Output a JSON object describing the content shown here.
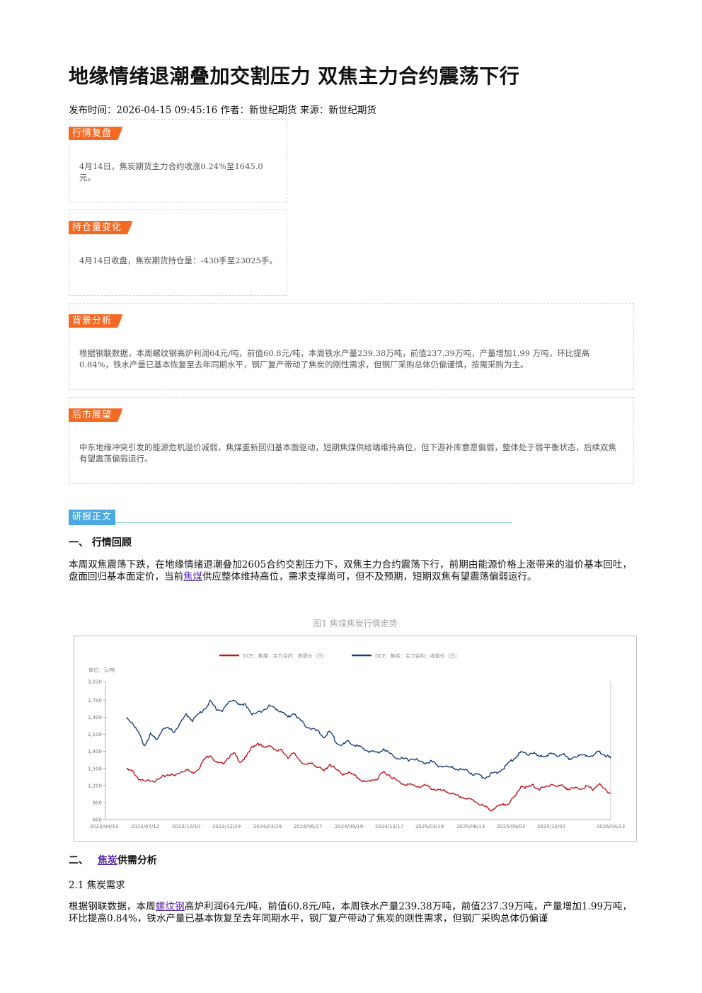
{
  "article": {
    "title": "地缘情绪退潮叠加交割压力 双焦主力合约震荡下行",
    "meta": "发布时间：2026-04-15 09:45:16 作者：新世纪期货 来源：新世纪期货"
  },
  "cards": {
    "market": {
      "tag": "行情复盘",
      "text": "4月14日，焦炭期货主力合约收涨0.24%至1645.0元。"
    },
    "position": {
      "tag": "持仓量变化",
      "text": "4月14日收盘，焦炭期货持仓量：-430手至23025手。"
    },
    "background": {
      "tag": "背景分析",
      "text": "根据钢联数据，本周螺纹钢高炉利润64元/吨，前值60.8元/吨，本周铁水产量239.38万吨，前值237.39万吨，产量增加1.99 万吨，环比提高0.84%，铁水产量已基本恢复至去年同期水平，钢厂复产带动了焦炭的刚性需求，但钢厂采购总体仍偏谨慎，按需采购为主。"
    },
    "outlook": {
      "tag": "后市展望",
      "text": "中东地缘冲突引发的能源危机溢价减弱，焦煤重新回归基本面驱动，短期焦煤供给端维持高位，但下游补库意愿偏弱，整体处于弱平衡状态，后续双焦有望震荡偏弱运行。"
    }
  },
  "report": {
    "section_tag": "研报正文",
    "h1": "一、 行情回顾",
    "p1_a": "本周双焦震荡下跌，在地缘情绪退潮叠加2605合约交割压力下，双焦主力合约震荡下行，前期由能源价格上涨带来的溢价基本回吐，盘面回归基本面定价，当前",
    "p1_link": "焦煤",
    "p1_b": "供应整体维持高位，需求支撑尚可，但不及预期，短期双焦有望震荡偏弱运行。",
    "figure_caption": "图1 焦煤焦炭行情走势",
    "h2_prefix": "二、",
    "h2_link": "焦炭",
    "h2_suffix": "供需分析",
    "sub21": "2.1 焦炭需求",
    "p2_a": "根据钢联数据，本周",
    "p2_link": "螺纹钢",
    "p2_b": "高炉利润64元/吨，前值60.8元/吨，本周铁水产量239.38万吨，前值237.39万吨，产量增加1.99万吨，环比提高0.84%，铁水产量已基本恢复至去年同期水平，钢厂复产带动了焦炭的刚性需求，但钢厂采购总体仍偏谨"
  },
  "chart_data": {
    "type": "line",
    "unit_label": "单位：元/吨",
    "ylim": [
      600,
      3030
    ],
    "yticks": [
      600,
      900,
      1200,
      1500,
      1800,
      2100,
      2400,
      2700,
      3030
    ],
    "ytick_labels": [
      "600",
      "900",
      "1,200",
      "1,500",
      "1,800",
      "2,100",
      "2,400",
      "2,700",
      "3,030"
    ],
    "xtick_labels": [
      "2023/04/14",
      "2023/07/12",
      "2023/10/10",
      "2023/12/29",
      "2024/03/29",
      "2024/06/27",
      "2024/09/19",
      "2024/12/17",
      "2025/03/18",
      "2025/06/13",
      "2025/09/03",
      "2025/12/02",
      "2026/04/13"
    ],
    "legend_position": "top",
    "series": [
      {
        "name": "DCE：焦煤：主力合约：收盘价（日）",
        "color": "#c0161f",
        "values": [
          1480,
          1450,
          1320,
          1260,
          1300,
          1280,
          1350,
          1400,
          1370,
          1440,
          1480,
          1420,
          1500,
          1660,
          1750,
          1600,
          1580,
          1700,
          1760,
          1620,
          1700,
          1880,
          1950,
          1850,
          1920,
          1800,
          1820,
          1700,
          1760,
          1650,
          1550,
          1600,
          1530,
          1450,
          1580,
          1480,
          1400,
          1430,
          1380,
          1320,
          1250,
          1300,
          1320,
          1440,
          1380,
          1300,
          1240,
          1220,
          1200,
          1180,
          1200,
          1150,
          1120,
          1100,
          1080,
          1020,
          1000,
          960,
          940,
          880,
          820,
          770,
          820,
          860,
          900,
          1000,
          1200,
          1160,
          1200,
          1140,
          1160,
          1230,
          1180,
          1200,
          1130,
          1150,
          1150,
          1180,
          1130,
          1230,
          1120,
          1060
        ]
      },
      {
        "name": "DCE：焦炭：主力合约：收盘价（日）",
        "color": "#1c3e7d",
        "values": [
          2400,
          2300,
          2120,
          1900,
          2100,
          2000,
          2200,
          2200,
          2150,
          2300,
          2450,
          2350,
          2450,
          2550,
          2680,
          2550,
          2520,
          2650,
          2720,
          2600,
          2620,
          2450,
          2480,
          2550,
          2600,
          2550,
          2500,
          2400,
          2480,
          2350,
          2250,
          2200,
          2150,
          2050,
          2150,
          1980,
          1900,
          1970,
          1920,
          1880,
          1820,
          1800,
          1780,
          1850,
          1760,
          1700,
          1680,
          1650,
          1680,
          1620,
          1600,
          1620,
          1550,
          1540,
          1520,
          1500,
          1480,
          1460,
          1400,
          1380,
          1340,
          1400,
          1420,
          1500,
          1600,
          1700,
          1780,
          1750,
          1780,
          1700,
          1730,
          1750,
          1720,
          1760,
          1650,
          1720,
          1730,
          1740,
          1720,
          1800,
          1740,
          1680
        ]
      }
    ]
  }
}
